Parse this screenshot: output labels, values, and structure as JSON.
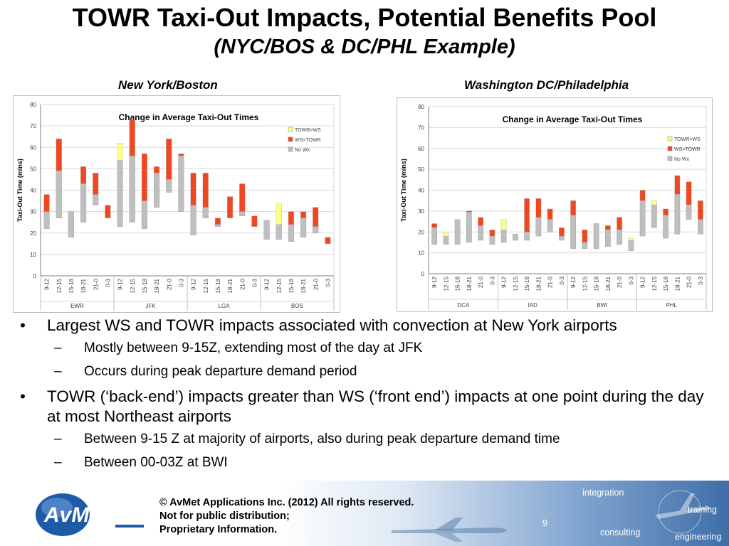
{
  "title": "TOWR Taxi-Out Impacts, Potential Benefits Pool",
  "subtitle": "(NYC/BOS & DC/PHL Example)",
  "colors": {
    "no_wx": "#bfbfbf",
    "ws_towr": "#ee4722",
    "towr_ws": "#ffff80"
  },
  "chart_data": [
    {
      "type": "bar",
      "heading": "New York/Boston",
      "title": "Change in Average Taxi-Out Times",
      "ylabel": "Taxi-Out Time (mins)",
      "ylim": [
        0,
        80
      ],
      "yticks": [
        0,
        10,
        20,
        30,
        40,
        50,
        60,
        70,
        80
      ],
      "grid": true,
      "legend_position": "right",
      "legend": [
        "TOWR>WS",
        "WS>TOWR",
        "No Wx"
      ],
      "groups": [
        {
          "name": "EWR",
          "categories": [
            "9-12",
            "12-15",
            "15-18",
            "18-21",
            "21-0",
            "0-3"
          ]
        },
        {
          "name": "JFK",
          "categories": [
            "9-12",
            "12-15",
            "15-18",
            "18-21",
            "21-0",
            "0-3"
          ]
        },
        {
          "name": "LGA",
          "categories": [
            "9-12",
            "12-15",
            "15-18",
            "18-21",
            "21-0",
            "0-3"
          ]
        },
        {
          "name": "BOS",
          "categories": [
            "9-12",
            "12-15",
            "15-18",
            "18-21",
            "21-0",
            "0-3"
          ]
        }
      ],
      "bars": [
        {
          "nowx": [
            22,
            30
          ],
          "ws": [
            30,
            38
          ],
          "towr": null
        },
        {
          "nowx": [
            27,
            49
          ],
          "ws": [
            49,
            64
          ],
          "towr": null
        },
        {
          "nowx": [
            18,
            30
          ],
          "ws": null,
          "towr": null
        },
        {
          "nowx": [
            25,
            43
          ],
          "ws": [
            43,
            51
          ],
          "towr": null
        },
        {
          "nowx": [
            33,
            38
          ],
          "ws": [
            38,
            48
          ],
          "towr": null
        },
        {
          "nowx": [
            27,
            27
          ],
          "ws": [
            27,
            33
          ],
          "towr": null
        },
        {
          "nowx": [
            23,
            54
          ],
          "ws": null,
          "towr": [
            54,
            62
          ]
        },
        {
          "nowx": [
            25,
            56
          ],
          "ws": [
            56,
            73
          ],
          "towr": null
        },
        {
          "nowx": [
            22,
            35
          ],
          "ws": [
            35,
            57
          ],
          "towr": null
        },
        {
          "nowx": [
            32,
            48
          ],
          "ws": [
            48,
            51
          ],
          "towr": null
        },
        {
          "nowx": [
            39,
            45
          ],
          "ws": [
            45,
            64
          ],
          "towr": null
        },
        {
          "nowx": [
            30,
            56
          ],
          "ws": [
            56,
            57
          ],
          "towr": null
        },
        {
          "nowx": [
            19,
            33
          ],
          "ws": [
            33,
            48
          ],
          "towr": null
        },
        {
          "nowx": [
            27,
            32
          ],
          "ws": [
            32,
            48
          ],
          "towr": null
        },
        {
          "nowx": [
            23,
            24
          ],
          "ws": [
            24,
            27
          ],
          "towr": null
        },
        {
          "nowx": [
            27,
            27
          ],
          "ws": [
            27,
            37
          ],
          "towr": null
        },
        {
          "nowx": [
            28,
            30
          ],
          "ws": [
            30,
            43
          ],
          "towr": null
        },
        {
          "nowx": [
            23,
            23
          ],
          "ws": [
            23,
            28
          ],
          "towr": null
        },
        {
          "nowx": [
            17,
            26
          ],
          "ws": null,
          "towr": null
        },
        {
          "nowx": [
            17,
            24
          ],
          "ws": null,
          "towr": [
            24,
            34
          ]
        },
        {
          "nowx": [
            16,
            24
          ],
          "ws": [
            24,
            30
          ],
          "towr": null
        },
        {
          "nowx": [
            18,
            27
          ],
          "ws": [
            27,
            30
          ],
          "towr": null
        },
        {
          "nowx": [
            20,
            23
          ],
          "ws": [
            23,
            32
          ],
          "towr": null
        },
        {
          "nowx": [
            15,
            15
          ],
          "ws": [
            15,
            18
          ],
          "towr": null
        }
      ]
    },
    {
      "type": "bar",
      "heading": "Washington DC/Philadelphia",
      "title": "Change in Average Taxi-Out Times",
      "ylabel": "Taxi-Out Time (mins)",
      "ylim": [
        0,
        80
      ],
      "yticks": [
        0,
        10,
        20,
        30,
        40,
        50,
        60,
        70,
        80
      ],
      "grid": true,
      "legend_position": "right",
      "legend": [
        "TOWR>WS",
        "WS>TOWR",
        "No Wx"
      ],
      "groups": [
        {
          "name": "DCA",
          "categories": [
            "9-12",
            "12-15",
            "15-18",
            "18-21",
            "21-0",
            "0-3"
          ]
        },
        {
          "name": "IAD",
          "categories": [
            "9-12",
            "12-15",
            "15-18",
            "18-21",
            "21-0",
            "0-3"
          ]
        },
        {
          "name": "BWI",
          "categories": [
            "9-12",
            "12-15",
            "15-18",
            "18-21",
            "21-0",
            "0-3"
          ]
        },
        {
          "name": "PHL",
          "categories": [
            "9-12",
            "12-15",
            "15-18",
            "18-21",
            "21-0",
            "0-3"
          ]
        }
      ],
      "bars": [
        {
          "nowx": [
            14,
            22
          ],
          "ws": [
            22,
            24
          ],
          "towr": null
        },
        {
          "nowx": [
            14,
            18
          ],
          "ws": null,
          "towr": [
            18,
            20
          ]
        },
        {
          "nowx": [
            14,
            26
          ],
          "ws": null,
          "towr": null
        },
        {
          "nowx": [
            15,
            30
          ],
          "ws": [
            30,
            30
          ],
          "towr": null
        },
        {
          "nowx": [
            16,
            23
          ],
          "ws": [
            23,
            27
          ],
          "towr": null
        },
        {
          "nowx": [
            14,
            18
          ],
          "ws": [
            18,
            21
          ],
          "towr": null
        },
        {
          "nowx": [
            15,
            21
          ],
          "ws": null,
          "towr": [
            21,
            26
          ]
        },
        {
          "nowx": [
            16,
            19
          ],
          "ws": null,
          "towr": null
        },
        {
          "nowx": [
            16,
            20
          ],
          "ws": [
            20,
            36
          ],
          "towr": null
        },
        {
          "nowx": [
            18,
            27
          ],
          "ws": [
            27,
            36
          ],
          "towr": null
        },
        {
          "nowx": [
            20,
            26
          ],
          "ws": [
            26,
            31
          ],
          "towr": null
        },
        {
          "nowx": [
            16,
            18
          ],
          "ws": [
            18,
            22
          ],
          "towr": null
        },
        {
          "nowx": [
            12,
            28
          ],
          "ws": [
            28,
            35
          ],
          "towr": null
        },
        {
          "nowx": [
            12,
            15
          ],
          "ws": [
            15,
            21
          ],
          "towr": null
        },
        {
          "nowx": [
            12,
            24
          ],
          "ws": null,
          "towr": null
        },
        {
          "nowx": [
            13,
            21
          ],
          "ws": [
            21,
            23
          ],
          "towr": null
        },
        {
          "nowx": [
            14,
            21
          ],
          "ws": [
            21,
            27
          ],
          "towr": null
        },
        {
          "nowx": [
            11,
            16
          ],
          "ws": null,
          "towr": [
            16,
            17
          ]
        },
        {
          "nowx": [
            18,
            35
          ],
          "ws": [
            35,
            40
          ],
          "towr": null
        },
        {
          "nowx": [
            22,
            33
          ],
          "ws": null,
          "towr": [
            33,
            35
          ]
        },
        {
          "nowx": [
            17,
            28
          ],
          "ws": [
            28,
            31
          ],
          "towr": null
        },
        {
          "nowx": [
            19,
            38
          ],
          "ws": [
            38,
            47
          ],
          "towr": null
        },
        {
          "nowx": [
            26,
            33
          ],
          "ws": [
            33,
            44
          ],
          "towr": null
        },
        {
          "nowx": [
            19,
            26
          ],
          "ws": [
            26,
            35
          ],
          "towr": null
        }
      ]
    }
  ],
  "bullets": [
    {
      "text": "Largest WS and TOWR impacts associated with convection at New York airports",
      "subs": [
        "Mostly between 9-15Z, extending most of the day at JFK",
        "Occurs during peak departure demand period"
      ]
    },
    {
      "text": "TOWR (‘back-end’) impacts greater than WS (‘front end’) impacts at one point during the day at most Northeast airports",
      "subs": [
        "Between 9-15 Z at majority of airports, also during peak departure demand time",
        "Between 00-03Z at BWI"
      ]
    }
  ],
  "footer": {
    "logo_text": "AvMet",
    "copyright": [
      "© AvMet Applications Inc. (2012) All rights reserved.",
      "Not for public distribution;",
      "Proprietary Information."
    ],
    "page_number": "9",
    "words": [
      "integration",
      "training",
      "consulting",
      "engineering"
    ]
  }
}
